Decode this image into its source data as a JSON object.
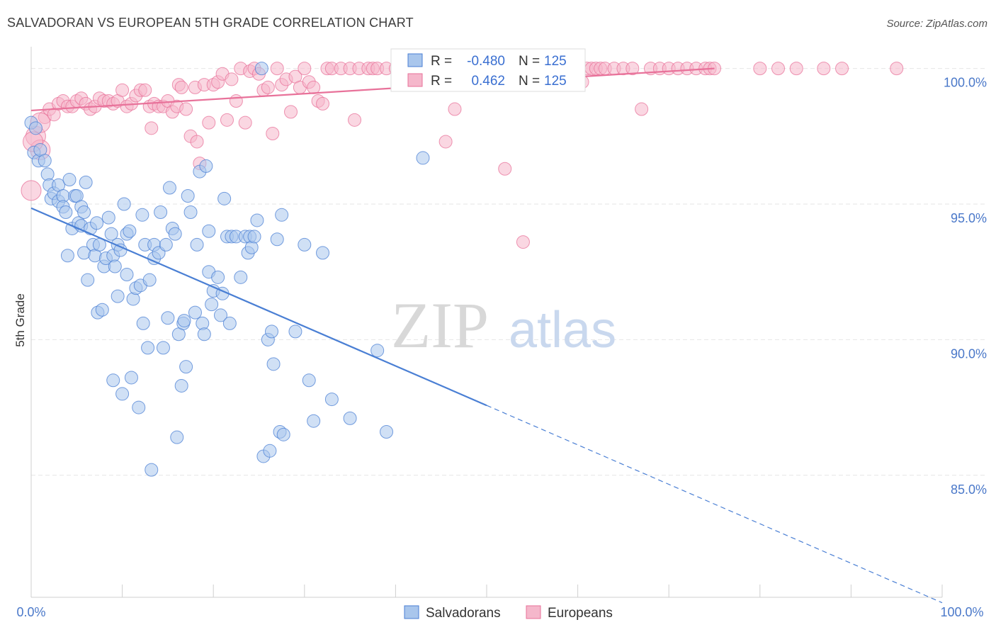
{
  "title": "SALVADORAN VS EUROPEAN 5TH GRADE CORRELATION CHART",
  "source": "Source: ZipAtlas.com",
  "watermark": {
    "zip": "ZIP",
    "atlas": "atlas"
  },
  "colors": {
    "blue": "#4a7fd4",
    "blue_fill": "#a9c6ec",
    "pink": "#e8729a",
    "pink_fill": "#f5b7cb",
    "tick": "#4a78c9",
    "grid": "#e6e6e6"
  },
  "legend": {
    "r_label": "R =",
    "n_label": "N =",
    "rows": [
      {
        "r": "-0.480",
        "n": "125"
      },
      {
        "r": "0.462",
        "n": "125"
      }
    ]
  },
  "bottom_legend": [
    "Salvadorans",
    "Europeans"
  ],
  "chart_data": {
    "type": "scatter",
    "title": "SALVADORAN VS EUROPEAN 5TH GRADE CORRELATION CHART",
    "xlabel": "",
    "ylabel": "5th Grade",
    "xlim": [
      0,
      100
    ],
    "ylim": [
      80.5,
      100.8
    ],
    "x_tick_labels": [
      "0.0%",
      "100.0%"
    ],
    "y_ticks": [
      85,
      90,
      95,
      100
    ],
    "y_tick_labels": [
      "85.0%",
      "90.0%",
      "95.0%",
      "100.0%"
    ],
    "grid": "horizontal dashed",
    "legend_position": "top-center",
    "series": [
      {
        "name": "Salvadorans",
        "r": -0.48,
        "n": 125,
        "trend": {
          "x0": 0,
          "y0": 94.85,
          "x1": 100,
          "y1": 80.3,
          "solid_until_x": 50
        },
        "points": [
          [
            0.0,
            98.0
          ],
          [
            0.3,
            96.9
          ],
          [
            0.8,
            96.6
          ],
          [
            1.0,
            97.0
          ],
          [
            1.5,
            96.6
          ],
          [
            1.8,
            96.1
          ],
          [
            2.0,
            95.7
          ],
          [
            2.2,
            95.2
          ],
          [
            2.5,
            95.4
          ],
          [
            3.0,
            95.7
          ],
          [
            3.0,
            95.1
          ],
          [
            3.5,
            95.3
          ],
          [
            3.5,
            94.9
          ],
          [
            3.8,
            94.7
          ],
          [
            4.0,
            93.1
          ],
          [
            4.2,
            95.9
          ],
          [
            4.5,
            94.1
          ],
          [
            4.8,
            95.3
          ],
          [
            5.0,
            95.3
          ],
          [
            5.2,
            94.3
          ],
          [
            5.5,
            94.9
          ],
          [
            5.5,
            94.2
          ],
          [
            5.8,
            94.7
          ],
          [
            5.8,
            93.2
          ],
          [
            6.0,
            95.8
          ],
          [
            6.2,
            92.2
          ],
          [
            6.5,
            94.1
          ],
          [
            6.8,
            93.5
          ],
          [
            7.0,
            93.1
          ],
          [
            7.2,
            94.3
          ],
          [
            7.3,
            91.0
          ],
          [
            7.5,
            93.5
          ],
          [
            7.8,
            91.1
          ],
          [
            8.0,
            92.7
          ],
          [
            8.2,
            93.0
          ],
          [
            8.5,
            94.5
          ],
          [
            8.8,
            93.9
          ],
          [
            9.0,
            93.1
          ],
          [
            9.0,
            88.5
          ],
          [
            9.2,
            92.7
          ],
          [
            9.5,
            91.6
          ],
          [
            9.5,
            93.5
          ],
          [
            9.8,
            93.3
          ],
          [
            10.0,
            88.0
          ],
          [
            10.2,
            95.0
          ],
          [
            10.5,
            93.9
          ],
          [
            10.5,
            92.4
          ],
          [
            10.8,
            94.0
          ],
          [
            11.0,
            88.6
          ],
          [
            11.2,
            91.5
          ],
          [
            11.5,
            91.9
          ],
          [
            11.8,
            87.5
          ],
          [
            12.0,
            92.0
          ],
          [
            12.2,
            94.6
          ],
          [
            12.3,
            90.6
          ],
          [
            12.5,
            93.5
          ],
          [
            12.8,
            89.7
          ],
          [
            13.0,
            92.2
          ],
          [
            13.2,
            85.2
          ],
          [
            13.5,
            93.5
          ],
          [
            13.5,
            93.0
          ],
          [
            14.0,
            93.2
          ],
          [
            14.2,
            94.7
          ],
          [
            14.5,
            89.7
          ],
          [
            14.8,
            93.5
          ],
          [
            15.0,
            90.8
          ],
          [
            15.2,
            95.6
          ],
          [
            15.5,
            94.1
          ],
          [
            15.8,
            93.9
          ],
          [
            16.0,
            86.4
          ],
          [
            16.2,
            90.2
          ],
          [
            16.5,
            88.3
          ],
          [
            16.7,
            90.6
          ],
          [
            16.8,
            90.7
          ],
          [
            17.0,
            89.0
          ],
          [
            17.2,
            95.3
          ],
          [
            17.5,
            94.7
          ],
          [
            18.0,
            91.0
          ],
          [
            18.2,
            93.5
          ],
          [
            18.5,
            96.2
          ],
          [
            18.8,
            90.6
          ],
          [
            19.0,
            90.2
          ],
          [
            19.2,
            96.4
          ],
          [
            19.5,
            92.5
          ],
          [
            19.5,
            94.0
          ],
          [
            19.8,
            91.3
          ],
          [
            20.0,
            91.8
          ],
          [
            20.5,
            92.3
          ],
          [
            20.8,
            90.9
          ],
          [
            21.0,
            91.7
          ],
          [
            21.2,
            95.2
          ],
          [
            21.5,
            93.8
          ],
          [
            21.8,
            90.6
          ],
          [
            22.0,
            93.8
          ],
          [
            22.5,
            93.8
          ],
          [
            23.0,
            92.3
          ],
          [
            23.5,
            93.8
          ],
          [
            23.8,
            93.2
          ],
          [
            24.0,
            93.8
          ],
          [
            24.2,
            93.4
          ],
          [
            24.5,
            93.8
          ],
          [
            24.8,
            94.4
          ],
          [
            25.3,
            100.0
          ],
          [
            25.5,
            85.7
          ],
          [
            26.0,
            90.0
          ],
          [
            26.2,
            85.9
          ],
          [
            26.4,
            90.3
          ],
          [
            26.6,
            89.1
          ],
          [
            27.0,
            93.7
          ],
          [
            27.3,
            86.6
          ],
          [
            27.5,
            94.6
          ],
          [
            27.7,
            86.5
          ],
          [
            29.0,
            90.3
          ],
          [
            30.0,
            93.5
          ],
          [
            30.5,
            88.5
          ],
          [
            31.0,
            87.0
          ],
          [
            32.0,
            93.2
          ],
          [
            33.0,
            87.8
          ],
          [
            35.0,
            87.1
          ],
          [
            38.0,
            89.6
          ],
          [
            39.0,
            86.6
          ],
          [
            43.0,
            96.7
          ],
          [
            0.5,
            97.8
          ]
        ]
      },
      {
        "name": "Europeans",
        "r": 0.462,
        "n": 125,
        "trend": {
          "x0": 0,
          "y0": 98.45,
          "x1": 75,
          "y1": 100.0
        },
        "points": [
          [
            0.0,
            95.5
          ],
          [
            0.5,
            97.5
          ],
          [
            1.0,
            97.0
          ],
          [
            1.5,
            98.2
          ],
          [
            2.0,
            98.5
          ],
          [
            2.5,
            98.3
          ],
          [
            3.0,
            98.7
          ],
          [
            3.5,
            98.8
          ],
          [
            4.0,
            98.6
          ],
          [
            4.5,
            98.6
          ],
          [
            5.0,
            98.8
          ],
          [
            5.5,
            98.9
          ],
          [
            6.0,
            98.7
          ],
          [
            6.5,
            98.5
          ],
          [
            7.0,
            98.6
          ],
          [
            7.5,
            98.9
          ],
          [
            8.0,
            98.8
          ],
          [
            8.5,
            98.8
          ],
          [
            9.0,
            98.7
          ],
          [
            9.5,
            98.8
          ],
          [
            10.0,
            99.2
          ],
          [
            10.5,
            98.6
          ],
          [
            11.0,
            98.7
          ],
          [
            11.5,
            99.0
          ],
          [
            12.0,
            99.2
          ],
          [
            12.5,
            99.2
          ],
          [
            13.0,
            98.6
          ],
          [
            13.2,
            97.8
          ],
          [
            13.5,
            98.7
          ],
          [
            14.0,
            98.6
          ],
          [
            14.5,
            98.6
          ],
          [
            15.0,
            98.8
          ],
          [
            15.5,
            98.4
          ],
          [
            16.0,
            98.6
          ],
          [
            16.2,
            99.4
          ],
          [
            16.5,
            99.3
          ],
          [
            17.0,
            98.5
          ],
          [
            17.5,
            97.5
          ],
          [
            18.0,
            99.3
          ],
          [
            18.2,
            97.3
          ],
          [
            18.5,
            96.5
          ],
          [
            19.0,
            99.4
          ],
          [
            19.5,
            98.0
          ],
          [
            20.0,
            99.4
          ],
          [
            20.5,
            99.5
          ],
          [
            21.0,
            99.8
          ],
          [
            21.5,
            98.1
          ],
          [
            22.0,
            99.6
          ],
          [
            22.5,
            98.8
          ],
          [
            23.0,
            100.0
          ],
          [
            23.5,
            98.0
          ],
          [
            24.0,
            99.9
          ],
          [
            24.5,
            100.0
          ],
          [
            25.0,
            99.8
          ],
          [
            25.5,
            99.2
          ],
          [
            26.0,
            99.3
          ],
          [
            26.5,
            97.6
          ],
          [
            27.0,
            100.0
          ],
          [
            27.5,
            99.4
          ],
          [
            28.0,
            99.6
          ],
          [
            28.5,
            98.4
          ],
          [
            29.0,
            99.7
          ],
          [
            29.5,
            99.3
          ],
          [
            30.0,
            100.0
          ],
          [
            30.5,
            99.5
          ],
          [
            31.0,
            99.3
          ],
          [
            31.5,
            98.8
          ],
          [
            32.0,
            98.7
          ],
          [
            32.5,
            100.0
          ],
          [
            33.0,
            100.0
          ],
          [
            34.0,
            100.0
          ],
          [
            35.0,
            100.0
          ],
          [
            35.5,
            98.1
          ],
          [
            36.0,
            100.0
          ],
          [
            37.0,
            100.0
          ],
          [
            37.5,
            100.0
          ],
          [
            38.0,
            100.0
          ],
          [
            39.0,
            100.0
          ],
          [
            40.0,
            100.0
          ],
          [
            40.5,
            100.0
          ],
          [
            41.0,
            100.0
          ],
          [
            42.0,
            100.0
          ],
          [
            43.0,
            100.0
          ],
          [
            44.0,
            100.0
          ],
          [
            45.0,
            100.0
          ],
          [
            45.5,
            97.3
          ],
          [
            46.5,
            98.5
          ],
          [
            47.0,
            100.0
          ],
          [
            48.0,
            100.0
          ],
          [
            52.0,
            96.3
          ],
          [
            52.5,
            100.0
          ],
          [
            53.0,
            100.0
          ],
          [
            54.0,
            93.6
          ],
          [
            55.0,
            100.0
          ],
          [
            57.0,
            100.0
          ],
          [
            60.0,
            100.0
          ],
          [
            60.5,
            99.5
          ],
          [
            61.0,
            100.0
          ],
          [
            61.5,
            100.0
          ],
          [
            62.0,
            100.0
          ],
          [
            62.5,
            100.0
          ],
          [
            63.0,
            100.0
          ],
          [
            64.0,
            100.0
          ],
          [
            65.0,
            100.0
          ],
          [
            66.0,
            100.0
          ],
          [
            67.0,
            98.5
          ],
          [
            68.0,
            100.0
          ],
          [
            69.0,
            100.0
          ],
          [
            70.0,
            100.0
          ],
          [
            71.0,
            100.0
          ],
          [
            72.0,
            100.0
          ],
          [
            73.0,
            100.0
          ],
          [
            74.0,
            100.0
          ],
          [
            74.5,
            100.0
          ],
          [
            75.0,
            100.0
          ],
          [
            80.0,
            100.0
          ],
          [
            82.0,
            100.0
          ],
          [
            84.0,
            100.0
          ],
          [
            87.0,
            100.0
          ],
          [
            89.0,
            100.0
          ],
          [
            95.0,
            100.0
          ],
          [
            1.0,
            98.0
          ],
          [
            0.2,
            97.3
          ]
        ]
      }
    ]
  }
}
